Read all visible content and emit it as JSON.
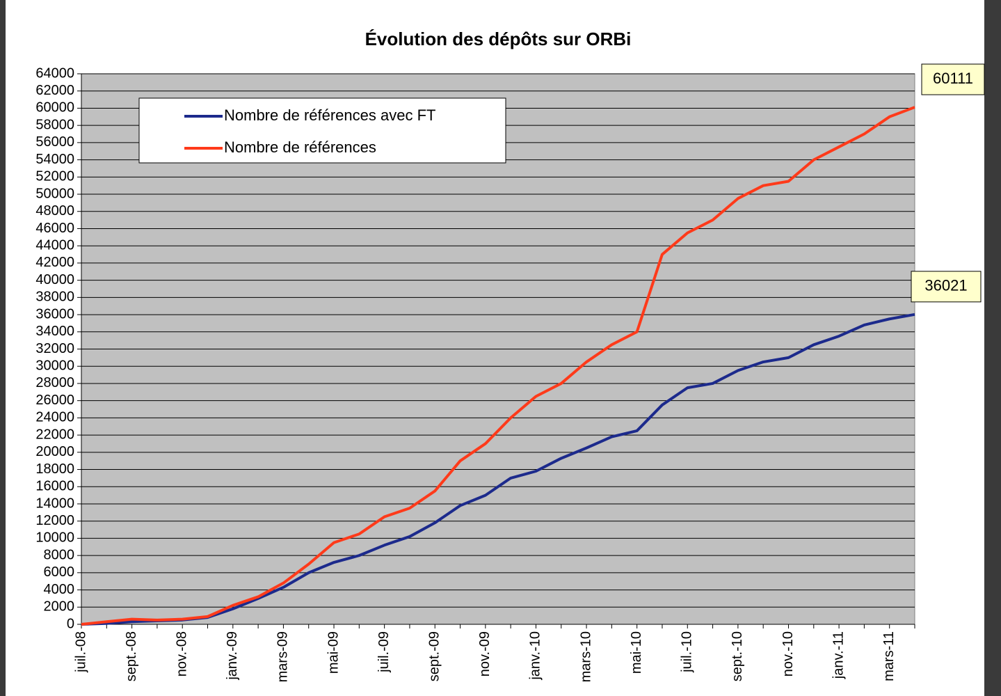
{
  "chart_data": {
    "type": "line",
    "title": "Évolution des dépôts sur ORBi",
    "categories": [
      "juil.-08",
      null,
      "sept.-08",
      null,
      "nov.-08",
      null,
      "janv.-09",
      null,
      "mars-09",
      null,
      "mai-09",
      null,
      "juil.-09",
      null,
      "sept.-09",
      null,
      "nov.-09",
      null,
      "janv.-10",
      null,
      "mars-10",
      null,
      "mai-10",
      null,
      "juil.-10",
      null,
      "sept.-10",
      null,
      "nov.-10",
      null,
      "janv.-11",
      null,
      "mars-11",
      null
    ],
    "series": [
      {
        "name": "Nombre de références avec FT",
        "color": "#1c2a8c",
        "values": [
          0,
          100,
          300,
          400,
          500,
          800,
          1800,
          3000,
          4300,
          6000,
          7200,
          8000,
          9200,
          10200,
          11800,
          13800,
          15000,
          17000,
          17800,
          19300,
          20500,
          21800,
          22500,
          25500,
          27500,
          28000,
          29500,
          30500,
          31000,
          32500,
          33500,
          34800,
          35500,
          36021
        ]
      },
      {
        "name": "Nombre de références",
        "color": "#ff3a1a",
        "values": [
          0,
          300,
          600,
          500,
          600,
          900,
          2200,
          3200,
          4800,
          7000,
          9500,
          10500,
          12500,
          13500,
          15500,
          19000,
          21000,
          24000,
          26500,
          28000,
          30500,
          32500,
          34000,
          43000,
          45500,
          47000,
          49500,
          51000,
          51500,
          54000,
          55500,
          57000,
          59000,
          60111
        ]
      }
    ],
    "ylim": [
      0,
      64000
    ],
    "yticks": [
      0,
      2000,
      4000,
      6000,
      8000,
      10000,
      12000,
      14000,
      16000,
      18000,
      20000,
      22000,
      24000,
      26000,
      28000,
      30000,
      32000,
      34000,
      36000,
      38000,
      40000,
      42000,
      44000,
      46000,
      48000,
      50000,
      52000,
      54000,
      56000,
      58000,
      60000,
      62000,
      64000
    ],
    "grid": true
  }
}
